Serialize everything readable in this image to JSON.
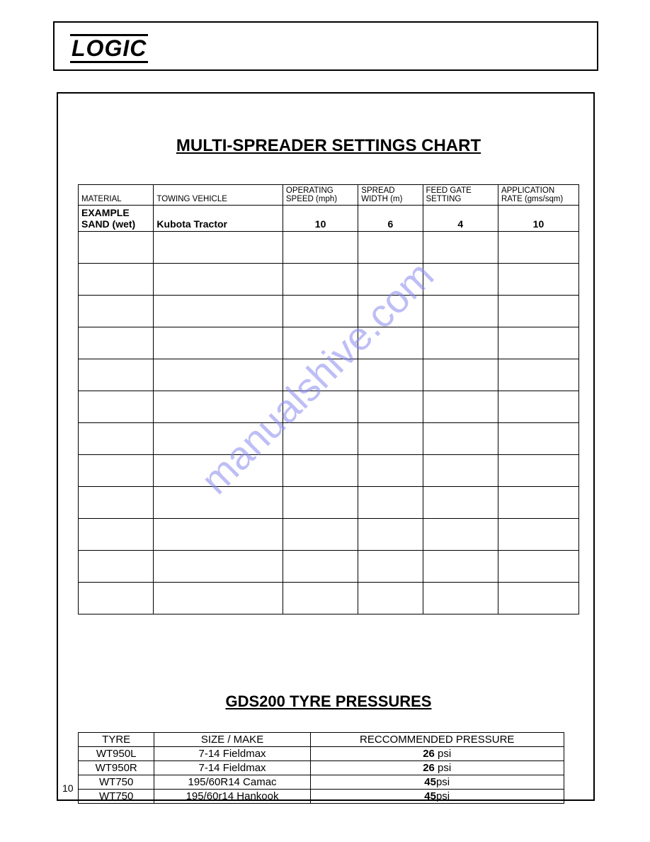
{
  "logo_text": "LOGIC",
  "watermark_text": "manualshive.com",
  "page_number": "10",
  "settings_chart": {
    "title": "MULTI-SPREADER SETTINGS CHART",
    "columns": [
      "MATERIAL",
      "TOWING VEHICLE",
      "OPERATING SPEED (mph)",
      "SPREAD WIDTH (m)",
      "FEED GATE SETTING",
      "APPLICATION RATE (gms/sqm)"
    ],
    "example_row": {
      "material_line1": "EXAMPLE",
      "material_line2": "SAND (wet)",
      "towing_vehicle": "Kubota Tractor",
      "operating_speed": "10",
      "spread_width": "6",
      "feed_gate": "4",
      "application_rate": "10"
    },
    "blank_row_count": 12
  },
  "tyre_pressures": {
    "title": "GDS200 TYRE PRESSURES",
    "columns": [
      "TYRE",
      "SIZE / MAKE",
      "RECCOMMENDED PRESSURE"
    ],
    "rows": [
      {
        "tyre": "WT950L",
        "size": "7-14 Fieldmax",
        "psi_value": "26",
        "psi_unit": " psi"
      },
      {
        "tyre": "WT950R",
        "size": "7-14 Fieldmax",
        "psi_value": "26",
        "psi_unit": " psi"
      },
      {
        "tyre": "WT750",
        "size": "195/60R14 Camac",
        "psi_value": "45",
        "psi_unit": "psi"
      },
      {
        "tyre": "WT750",
        "size": "195/60r14 Hankook",
        "psi_value": "45",
        "psi_unit": "psi"
      }
    ]
  }
}
